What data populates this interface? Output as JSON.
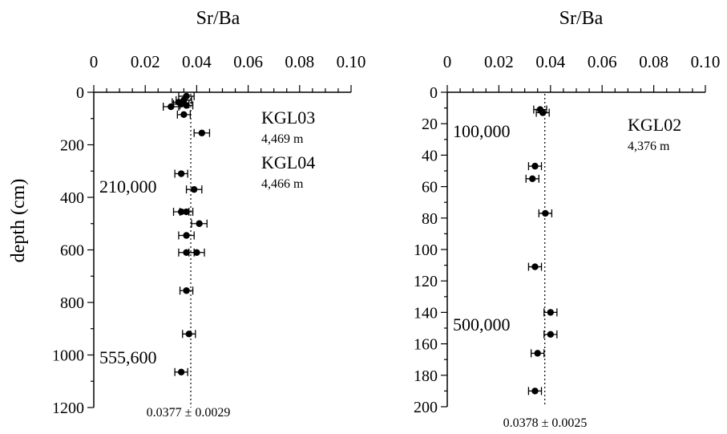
{
  "figure": {
    "ylabel": "depth (cm)"
  },
  "chart_data": [
    {
      "type": "scatter",
      "title": "Sr/Ba",
      "xlim": [
        0,
        0.1
      ],
      "x_ticks": [
        "0",
        "0.02",
        "0.04",
        "0.06",
        "0.08",
        "0.10"
      ],
      "ylim": [
        0,
        1200
      ],
      "y_ticks": [
        "0",
        "200",
        "400",
        "600",
        "800",
        "1000",
        "1200"
      ],
      "ylabel": "depth (cm)",
      "mean_line": 0.0377,
      "mean_label": "0.0377 ± 0.0029",
      "legend": [
        {
          "name": "KGL03",
          "elevation": "4,469 m"
        },
        {
          "name": "KGL04",
          "elevation": "4,466 m"
        }
      ],
      "age_labels": [
        {
          "text": "210,000",
          "depth": 360
        },
        {
          "text": "555,600",
          "depth": 1010
        }
      ],
      "points": [
        {
          "depth": 15,
          "value": 0.036,
          "err": 0.003
        },
        {
          "depth": 30,
          "value": 0.035,
          "err": 0.003
        },
        {
          "depth": 38,
          "value": 0.033,
          "err": 0.0025
        },
        {
          "depth": 45,
          "value": 0.034,
          "err": 0.003
        },
        {
          "depth": 50,
          "value": 0.036,
          "err": 0.0025
        },
        {
          "depth": 55,
          "value": 0.03,
          "err": 0.003
        },
        {
          "depth": 85,
          "value": 0.035,
          "err": 0.0025
        },
        {
          "depth": 155,
          "value": 0.042,
          "err": 0.003
        },
        {
          "depth": 310,
          "value": 0.034,
          "err": 0.0025
        },
        {
          "depth": 370,
          "value": 0.039,
          "err": 0.003
        },
        {
          "depth": 455,
          "value": 0.034,
          "err": 0.003
        },
        {
          "depth": 455,
          "value": 0.036,
          "err": 0.0025
        },
        {
          "depth": 500,
          "value": 0.041,
          "err": 0.003
        },
        {
          "depth": 545,
          "value": 0.036,
          "err": 0.003
        },
        {
          "depth": 610,
          "value": 0.036,
          "err": 0.003
        },
        {
          "depth": 610,
          "value": 0.04,
          "err": 0.003
        },
        {
          "depth": 755,
          "value": 0.036,
          "err": 0.0025
        },
        {
          "depth": 920,
          "value": 0.037,
          "err": 0.0025
        },
        {
          "depth": 1065,
          "value": 0.034,
          "err": 0.0025
        }
      ]
    },
    {
      "type": "scatter",
      "title": "Sr/Ba",
      "xlim": [
        0,
        0.1
      ],
      "x_ticks": [
        "0",
        "0.02",
        "0.04",
        "0.06",
        "0.08",
        "0.10"
      ],
      "ylim": [
        0,
        200
      ],
      "y_ticks": [
        "0",
        "20",
        "40",
        "60",
        "80",
        "100",
        "120",
        "140",
        "160",
        "180",
        "200"
      ],
      "ylabel": "",
      "mean_line": 0.0378,
      "mean_label": "0.0378 ± 0.0025",
      "legend": [
        {
          "name": "KGL02",
          "elevation": "4,376 m"
        }
      ],
      "age_labels": [
        {
          "text": "100,000",
          "depth": 25
        },
        {
          "text": "500,000",
          "depth": 148
        }
      ],
      "points": [
        {
          "depth": 11,
          "value": 0.036,
          "err": 0.0025
        },
        {
          "depth": 13,
          "value": 0.037,
          "err": 0.0025
        },
        {
          "depth": 47,
          "value": 0.034,
          "err": 0.0025
        },
        {
          "depth": 55,
          "value": 0.033,
          "err": 0.0025
        },
        {
          "depth": 77,
          "value": 0.038,
          "err": 0.0025
        },
        {
          "depth": 111,
          "value": 0.034,
          "err": 0.0025
        },
        {
          "depth": 140,
          "value": 0.04,
          "err": 0.0025
        },
        {
          "depth": 154,
          "value": 0.04,
          "err": 0.0025
        },
        {
          "depth": 166,
          "value": 0.035,
          "err": 0.0025
        },
        {
          "depth": 190,
          "value": 0.034,
          "err": 0.0025
        }
      ]
    }
  ]
}
